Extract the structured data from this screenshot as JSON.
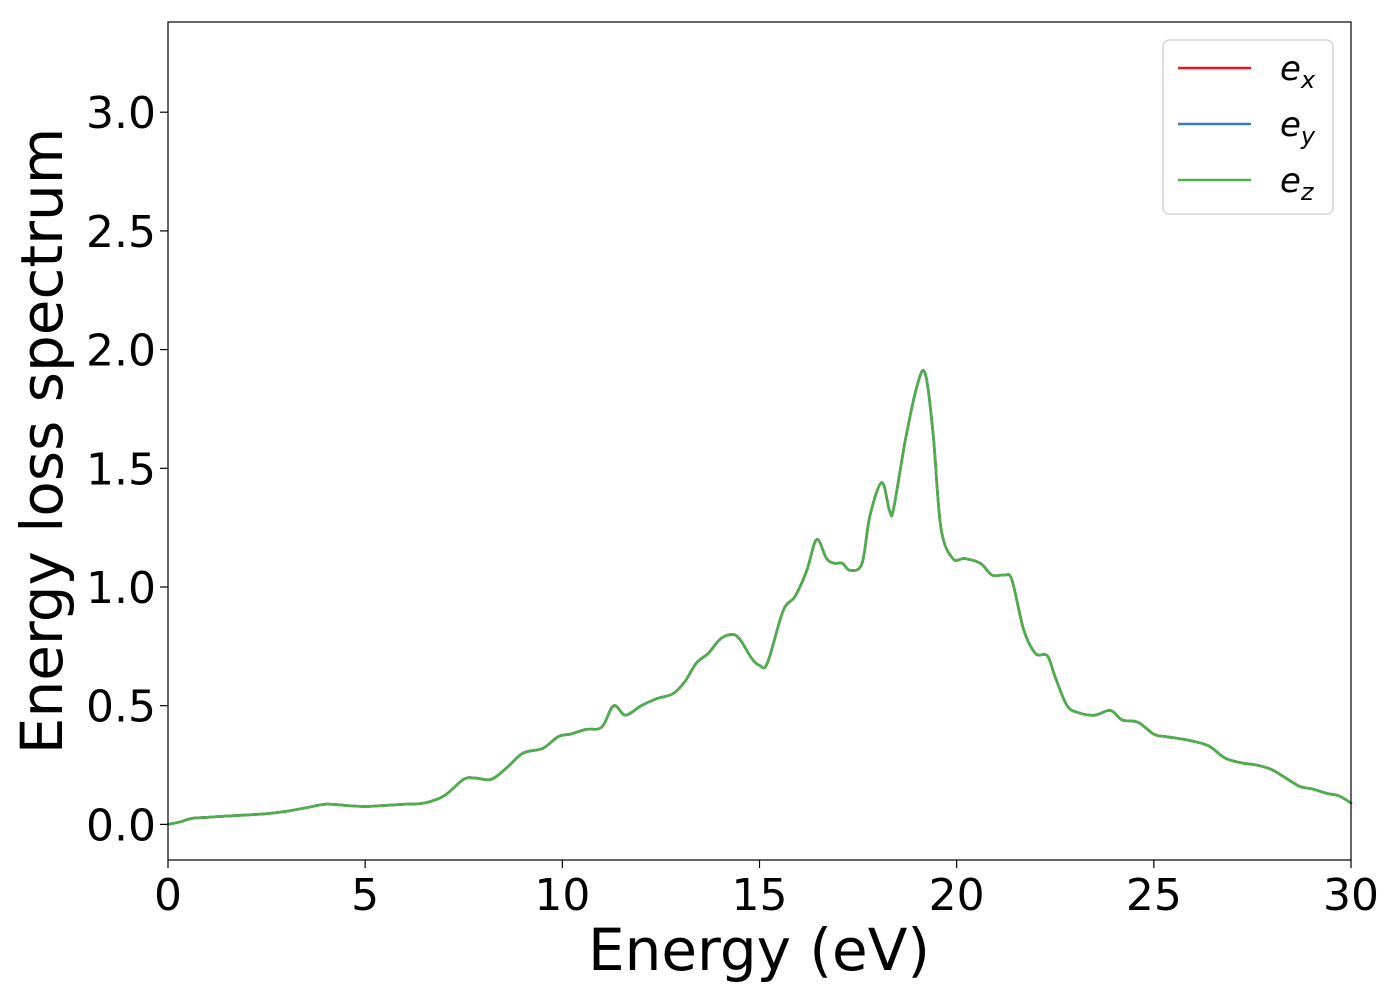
{
  "chart_data": {
    "type": "line",
    "title": "",
    "xlabel": "Energy (eV)",
    "ylabel": "Energy loss spectrum",
    "xlim": [
      0,
      30
    ],
    "ylim": [
      -0.15,
      3.38
    ],
    "xticks": [
      0,
      5,
      10,
      15,
      20,
      25,
      30
    ],
    "xtick_labels": [
      "0",
      "5",
      "10",
      "15",
      "20",
      "25",
      "30"
    ],
    "yticks": [
      0.0,
      0.5,
      1.0,
      1.5,
      2.0,
      2.5,
      3.0
    ],
    "ytick_labels": [
      "0.0",
      "0.5",
      "1.0",
      "1.5",
      "2.0",
      "2.5",
      "3.0"
    ],
    "grid": false,
    "legend_position": "top-right",
    "series": [
      {
        "name": "e_x",
        "label_base": "e",
        "label_sub": "x",
        "color": "#e41a1c",
        "x": [
          0,
          0.3,
          0.6,
          1.0,
          1.5,
          2.0,
          2.5,
          3.0,
          3.5,
          4.0,
          4.5,
          5.0,
          5.5,
          6.0,
          6.5,
          7.0,
          7.5,
          7.8,
          8.2,
          8.6,
          9.0,
          9.5,
          9.9,
          10.2,
          10.6,
          11.0,
          11.3,
          11.6,
          12.0,
          12.4,
          12.8,
          13.1,
          13.4,
          13.7,
          14.0,
          14.3,
          14.5,
          14.8,
          15.0,
          15.2,
          15.6,
          15.9,
          16.2,
          16.45,
          16.7,
          16.9,
          17.1,
          17.3,
          17.6,
          17.8,
          18.1,
          18.3,
          18.4,
          18.7,
          19.0,
          19.2,
          19.4,
          19.6,
          19.9,
          20.2,
          20.6,
          20.9,
          21.2,
          21.4,
          21.7,
          22.0,
          22.3,
          22.5,
          22.8,
          23.1,
          23.5,
          23.9,
          24.2,
          24.6,
          25.0,
          25.3,
          25.7,
          26.0,
          26.4,
          26.8,
          27.2,
          27.6,
          28.0,
          28.3,
          28.7,
          29.0,
          29.4,
          29.7,
          30.0
        ],
        "y": [
          0.0,
          0.01,
          0.025,
          0.03,
          0.035,
          0.04,
          0.045,
          0.055,
          0.07,
          0.085,
          0.08,
          0.075,
          0.08,
          0.085,
          0.09,
          0.12,
          0.19,
          0.195,
          0.19,
          0.24,
          0.3,
          0.32,
          0.37,
          0.38,
          0.4,
          0.41,
          0.5,
          0.46,
          0.5,
          0.53,
          0.55,
          0.6,
          0.68,
          0.72,
          0.78,
          0.8,
          0.78,
          0.7,
          0.67,
          0.68,
          0.9,
          0.96,
          1.07,
          1.2,
          1.12,
          1.1,
          1.1,
          1.07,
          1.1,
          1.3,
          1.44,
          1.32,
          1.33,
          1.62,
          1.85,
          1.9,
          1.65,
          1.25,
          1.12,
          1.12,
          1.1,
          1.05,
          1.05,
          1.03,
          0.82,
          0.72,
          0.71,
          0.62,
          0.5,
          0.47,
          0.46,
          0.48,
          0.44,
          0.43,
          0.38,
          0.37,
          0.36,
          0.35,
          0.33,
          0.28,
          0.26,
          0.25,
          0.23,
          0.2,
          0.16,
          0.15,
          0.13,
          0.12,
          0.09
        ]
      },
      {
        "name": "e_y",
        "label_base": "e",
        "label_sub": "y",
        "color": "#377eb8",
        "x": [
          0,
          0.3,
          0.6,
          1.0,
          1.5,
          2.0,
          2.5,
          3.0,
          3.5,
          4.0,
          4.5,
          5.0,
          5.5,
          6.0,
          6.5,
          7.0,
          7.5,
          7.8,
          8.2,
          8.6,
          9.0,
          9.5,
          9.9,
          10.2,
          10.6,
          11.0,
          11.3,
          11.6,
          12.0,
          12.4,
          12.8,
          13.1,
          13.4,
          13.7,
          14.0,
          14.3,
          14.5,
          14.8,
          15.0,
          15.2,
          15.6,
          15.9,
          16.2,
          16.45,
          16.7,
          16.9,
          17.1,
          17.3,
          17.6,
          17.8,
          18.1,
          18.3,
          18.4,
          18.7,
          19.0,
          19.2,
          19.4,
          19.6,
          19.9,
          20.2,
          20.6,
          20.9,
          21.2,
          21.4,
          21.7,
          22.0,
          22.3,
          22.5,
          22.8,
          23.1,
          23.5,
          23.9,
          24.2,
          24.6,
          25.0,
          25.3,
          25.7,
          26.0,
          26.4,
          26.8,
          27.2,
          27.6,
          28.0,
          28.3,
          28.7,
          29.0,
          29.4,
          29.7,
          30.0
        ],
        "y": [
          0.0,
          0.01,
          0.025,
          0.03,
          0.035,
          0.04,
          0.045,
          0.055,
          0.07,
          0.085,
          0.08,
          0.075,
          0.08,
          0.085,
          0.09,
          0.12,
          0.19,
          0.195,
          0.19,
          0.24,
          0.3,
          0.32,
          0.37,
          0.38,
          0.4,
          0.41,
          0.5,
          0.46,
          0.5,
          0.53,
          0.55,
          0.6,
          0.68,
          0.72,
          0.78,
          0.8,
          0.78,
          0.7,
          0.67,
          0.68,
          0.9,
          0.96,
          1.07,
          1.2,
          1.12,
          1.1,
          1.1,
          1.07,
          1.1,
          1.3,
          1.44,
          1.32,
          1.33,
          1.62,
          1.85,
          1.9,
          1.65,
          1.25,
          1.12,
          1.12,
          1.1,
          1.05,
          1.05,
          1.03,
          0.82,
          0.72,
          0.71,
          0.62,
          0.5,
          0.47,
          0.46,
          0.48,
          0.44,
          0.43,
          0.38,
          0.37,
          0.36,
          0.35,
          0.33,
          0.28,
          0.26,
          0.25,
          0.23,
          0.2,
          0.16,
          0.15,
          0.13,
          0.12,
          0.09
        ]
      },
      {
        "name": "e_z",
        "label_base": "e",
        "label_sub": "z",
        "color": "#4daf4a",
        "x": [
          0,
          0.3,
          0.6,
          1.0,
          1.5,
          2.0,
          2.5,
          3.0,
          3.5,
          4.0,
          4.5,
          5.0,
          5.5,
          6.0,
          6.5,
          7.0,
          7.5,
          7.8,
          8.2,
          8.6,
          9.0,
          9.5,
          9.9,
          10.2,
          10.6,
          11.0,
          11.3,
          11.6,
          12.0,
          12.4,
          12.8,
          13.1,
          13.4,
          13.7,
          14.0,
          14.3,
          14.5,
          14.8,
          15.0,
          15.2,
          15.6,
          15.9,
          16.2,
          16.45,
          16.7,
          16.9,
          17.1,
          17.3,
          17.6,
          17.8,
          18.1,
          18.3,
          18.4,
          18.7,
          19.0,
          19.2,
          19.4,
          19.6,
          19.9,
          20.2,
          20.6,
          20.9,
          21.2,
          21.4,
          21.7,
          22.0,
          22.3,
          22.5,
          22.8,
          23.1,
          23.5,
          23.9,
          24.2,
          24.6,
          25.0,
          25.3,
          25.7,
          26.0,
          26.4,
          26.8,
          27.2,
          27.6,
          28.0,
          28.3,
          28.7,
          29.0,
          29.4,
          29.7,
          30.0
        ],
        "y": [
          0.0,
          0.01,
          0.025,
          0.03,
          0.035,
          0.04,
          0.045,
          0.055,
          0.07,
          0.085,
          0.08,
          0.075,
          0.08,
          0.085,
          0.09,
          0.12,
          0.19,
          0.195,
          0.19,
          0.24,
          0.3,
          0.32,
          0.37,
          0.38,
          0.4,
          0.41,
          0.5,
          0.46,
          0.5,
          0.53,
          0.55,
          0.6,
          0.68,
          0.72,
          0.78,
          0.8,
          0.78,
          0.7,
          0.67,
          0.68,
          0.9,
          0.96,
          1.07,
          1.2,
          1.12,
          1.1,
          1.1,
          1.07,
          1.1,
          1.3,
          1.44,
          1.32,
          1.33,
          1.62,
          1.85,
          1.9,
          1.65,
          1.25,
          1.12,
          1.12,
          1.1,
          1.05,
          1.05,
          1.03,
          0.82,
          0.72,
          0.71,
          0.62,
          0.5,
          0.47,
          0.46,
          0.48,
          0.44,
          0.43,
          0.38,
          0.37,
          0.36,
          0.35,
          0.33,
          0.28,
          0.26,
          0.25,
          0.23,
          0.2,
          0.16,
          0.15,
          0.13,
          0.12,
          0.09
        ]
      }
    ]
  }
}
